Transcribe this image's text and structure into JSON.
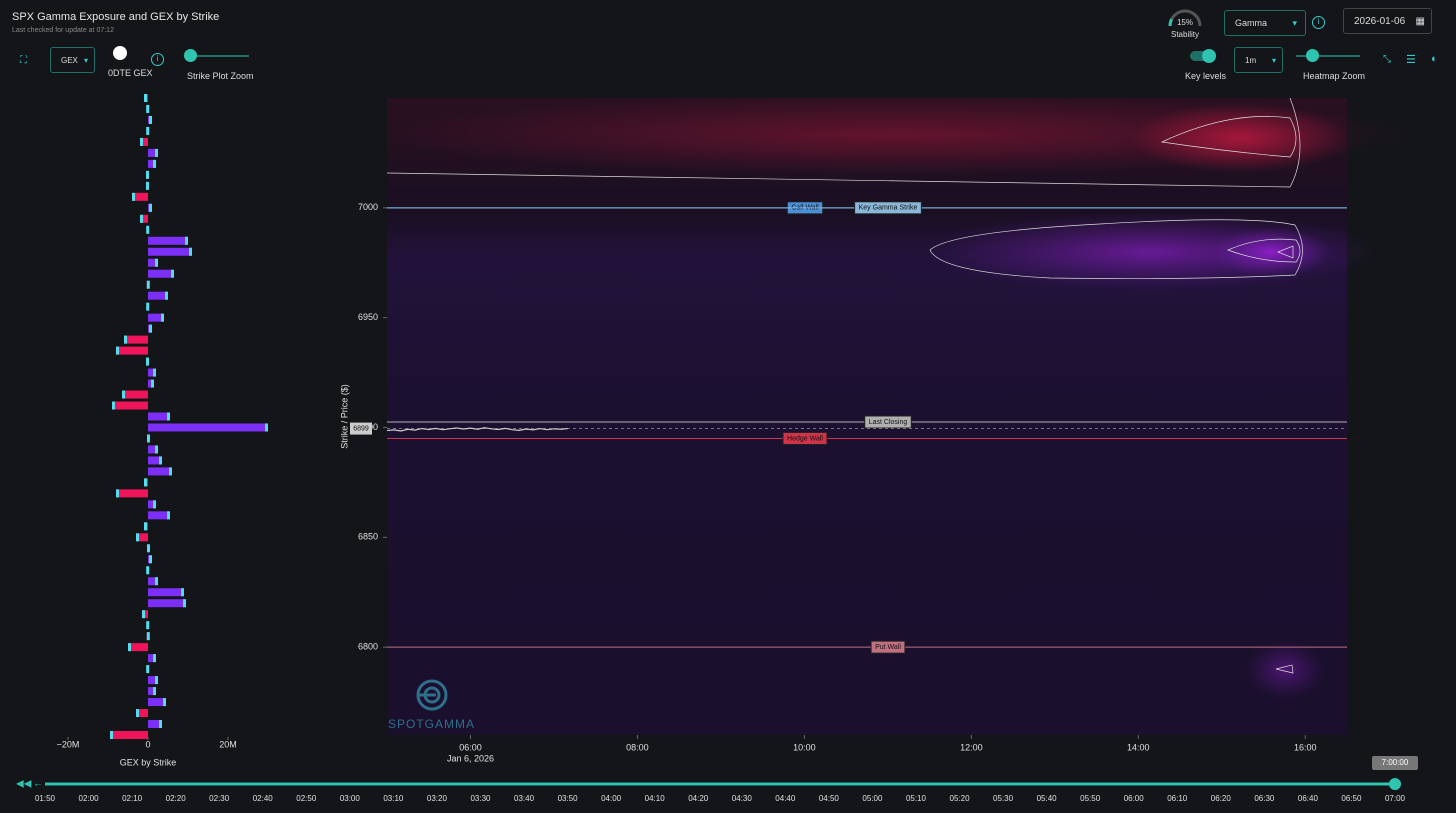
{
  "header": {
    "title": "SPX Gamma Exposure and GEX by Strike",
    "subtitle": "Last checked for update at 07:12"
  },
  "controls": {
    "stability": {
      "value": 15,
      "label": "15%",
      "name": "Stability"
    },
    "metric": "Gamma",
    "date": "2026-01-06",
    "gex_select": "GEX",
    "odte": {
      "label": "0DTE GEX",
      "on": false
    },
    "strike_zoom": "Strike Plot Zoom",
    "key_levels": {
      "label": "Key levels",
      "on": true
    },
    "interval": "1m",
    "heatmap_zoom": "Heatmap Zoom"
  },
  "chart_data": [
    {
      "type": "hbar",
      "x_label": "GEX by Strike",
      "pos_color": "#7b2ff7",
      "neg_color": "#f0145a",
      "xlim": [
        -27,
        35.5
      ],
      "xticks": [
        {
          "value": -20,
          "label": "−20M"
        },
        0,
        {
          "value": 20,
          "label": "20M"
        }
      ],
      "ylim": [
        6760,
        7050
      ],
      "categories": [
        7050,
        7045,
        7040,
        7035,
        7030,
        7025,
        7020,
        7015,
        7010,
        7005,
        7000,
        6995,
        6990,
        6985,
        6980,
        6975,
        6970,
        6965,
        6960,
        6955,
        6950,
        6945,
        6940,
        6935,
        6930,
        6925,
        6920,
        6915,
        6910,
        6905,
        6900,
        6895,
        6890,
        6885,
        6880,
        6875,
        6870,
        6865,
        6860,
        6855,
        6850,
        6845,
        6840,
        6835,
        6830,
        6825,
        6820,
        6815,
        6810,
        6805,
        6800,
        6795,
        6790,
        6785,
        6780,
        6775,
        6770,
        6765,
        6760
      ],
      "values": [
        -1,
        0.3,
        1,
        0.3,
        -2,
        2.5,
        2,
        -0.5,
        -0.5,
        -4,
        1,
        -2,
        0.3,
        10,
        11,
        2.5,
        6.5,
        -0.3,
        5,
        0.3,
        4,
        1,
        -6,
        -8,
        -0.5,
        2,
        1.5,
        -6.5,
        -9,
        5.5,
        30,
        0.5,
        2.5,
        3.5,
        6,
        -1,
        -8,
        2,
        5.5,
        -1,
        -3,
        0.5,
        1,
        0.3,
        2.5,
        9,
        9.5,
        -1.5,
        0.3,
        -0.3,
        -5,
        2,
        0.3,
        2.5,
        2,
        4.5,
        -3,
        3.5,
        -9.5
      ]
    },
    {
      "type": "heatmap",
      "y_label": "Strike / Price ($)",
      "xlim": [
        300,
        990
      ],
      "xticks": [
        {
          "value": 360,
          "label": "06:00"
        },
        {
          "value": 480,
          "label": "08:00"
        },
        {
          "value": 600,
          "label": "10:00"
        },
        {
          "value": 720,
          "label": "12:00"
        },
        {
          "value": 840,
          "label": "14:00"
        },
        {
          "value": 960,
          "label": "16:00"
        }
      ],
      "date_label": "Jan 6, 2026",
      "ylim": [
        6760,
        7050
      ],
      "yticks": [
        6800,
        6850,
        6900,
        6950,
        7000
      ],
      "price_label": "6899",
      "price": {
        "name": "Price",
        "color": "#cccccc",
        "x": [
          300,
          305,
          310,
          315,
          320,
          325,
          330,
          335,
          340,
          345,
          350,
          355,
          360,
          365,
          370,
          375,
          380,
          385,
          390,
          395,
          400,
          405,
          410,
          415,
          420,
          425,
          430
        ],
        "values": [
          6898.6,
          6898.9,
          6898.4,
          6899.2,
          6898.8,
          6899.5,
          6899.1,
          6899.6,
          6899.0,
          6899.4,
          6899.8,
          6899.3,
          6899.7,
          6899.2,
          6899.9,
          6899.4,
          6899.1,
          6899.6,
          6899.0,
          6898.7,
          6899.3,
          6898.9,
          6899.5,
          6899.0,
          6899.4,
          6899.2,
          6899.5
        ]
      },
      "levels": [
        {
          "name": "Call Wall",
          "value": 7000,
          "color": "#4a90d9"
        },
        {
          "name": "Key Gamma Strike",
          "value": 7000,
          "color": "#8ab8d8"
        },
        {
          "name": "Last Closing",
          "value": 6902.5,
          "color": "#b0b0b0"
        },
        {
          "name": "Hedge Wall",
          "value": 6895,
          "color": "#d0344a"
        },
        {
          "name": "Put Wall",
          "value": 6800,
          "color": "#c07080"
        }
      ]
    }
  ],
  "logo": "SPOTGAMMA",
  "timeline": {
    "value": "7:00:00",
    "ticks": [
      "01:50",
      "02:00",
      "02:10",
      "02:20",
      "02:30",
      "02:40",
      "02:50",
      "03:00",
      "03:10",
      "03:20",
      "03:30",
      "03:40",
      "03:50",
      "04:00",
      "04:10",
      "04:20",
      "04:30",
      "04:40",
      "04:50",
      "05:00",
      "05:10",
      "05:20",
      "05:30",
      "05:40",
      "05:50",
      "06:00",
      "06:10",
      "06:20",
      "06:30",
      "06:40",
      "06:50",
      "07:00"
    ]
  }
}
